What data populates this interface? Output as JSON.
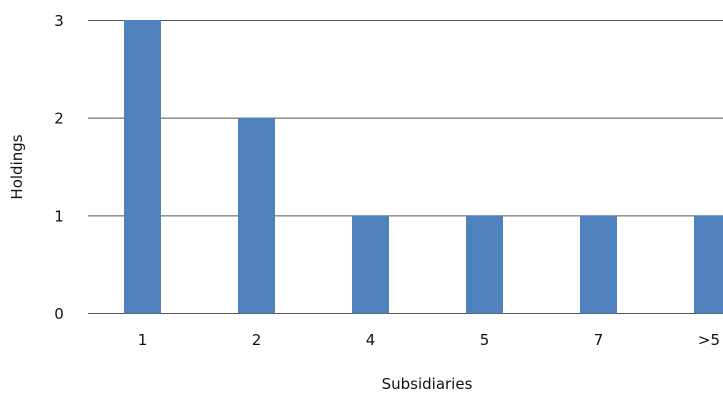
{
  "chart_data": {
    "type": "bar",
    "categories": [
      "1",
      "2",
      "4",
      "5",
      "7",
      ">5"
    ],
    "values": [
      3,
      2,
      1,
      1,
      1,
      1
    ],
    "xlabel": "Subsidiaries",
    "ylabel": "Holdings",
    "ylim": [
      0,
      3
    ],
    "yticks": [
      "0",
      "1",
      "2",
      "3"
    ],
    "grid": true,
    "legend": "none",
    "bar_color": "#4f81bd"
  }
}
